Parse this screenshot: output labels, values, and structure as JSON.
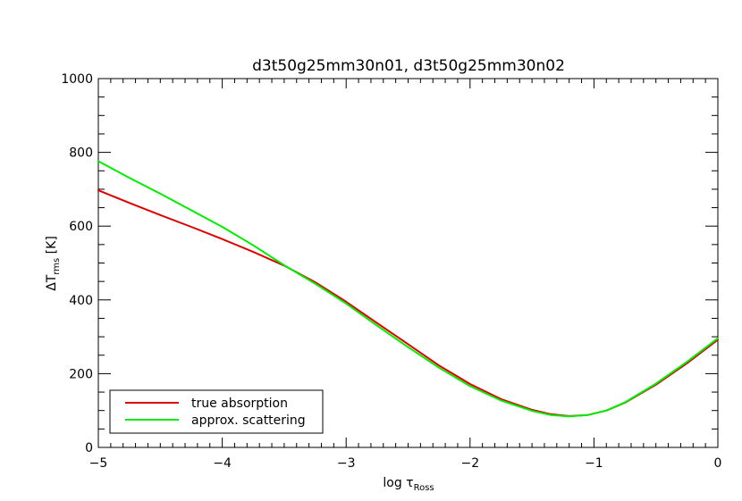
{
  "chart_data": {
    "type": "line",
    "title": "d3t50g25mm30n01, d3t50g25mm30n02",
    "xlabel": {
      "prefix": "log ",
      "symbol": "τ",
      "subscript": "Ross"
    },
    "ylabel": {
      "prefix": "ΔT",
      "subscript": "rms",
      "suffix": " [K]"
    },
    "xlim": [
      -5,
      0
    ],
    "ylim": [
      0,
      1000
    ],
    "x_ticks": [
      -5,
      -4,
      -3,
      -2,
      -1,
      0
    ],
    "x_tick_labels": [
      "−5",
      "−4",
      "−3",
      "−2",
      "−1",
      "0"
    ],
    "y_ticks": [
      0,
      200,
      400,
      600,
      800,
      1000
    ],
    "y_tick_labels": [
      "0",
      "200",
      "400",
      "600",
      "800",
      "1000"
    ],
    "grid": false,
    "legend_position": "bottom-left",
    "series": [
      {
        "name": "true absorption",
        "color": "#e00000",
        "x": [
          -5.0,
          -4.75,
          -4.5,
          -4.25,
          -4.0,
          -3.75,
          -3.5,
          -3.25,
          -3.0,
          -2.75,
          -2.5,
          -2.25,
          -2.0,
          -1.75,
          -1.5,
          -1.35,
          -1.2,
          -1.05,
          -0.9,
          -0.75,
          -0.5,
          -0.25,
          0.0
        ],
        "y": [
          697,
          663,
          630,
          598,
          565,
          530,
          493,
          448,
          395,
          337,
          280,
          222,
          172,
          131,
          102,
          90,
          85,
          88,
          100,
          121,
          170,
          228,
          292
        ]
      },
      {
        "name": "approx. scattering",
        "color": "#00ee00",
        "x": [
          -5.0,
          -4.75,
          -4.5,
          -4.25,
          -4.0,
          -3.75,
          -3.5,
          -3.25,
          -3.0,
          -2.75,
          -2.5,
          -2.25,
          -2.0,
          -1.75,
          -1.5,
          -1.35,
          -1.2,
          -1.05,
          -0.9,
          -0.75,
          -0.5,
          -0.25,
          0.0
        ],
        "y": [
          776,
          731,
          688,
          643,
          598,
          548,
          494,
          444,
          390,
          330,
          272,
          216,
          166,
          127,
          99,
          88,
          84,
          88,
          100,
          122,
          173,
          232,
          296
        ]
      }
    ]
  }
}
